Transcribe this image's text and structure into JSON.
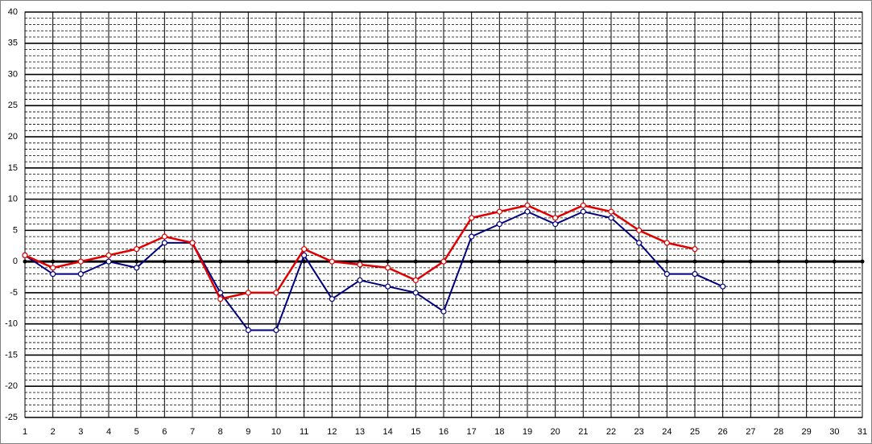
{
  "chart_data": {
    "type": "line",
    "x": [
      1,
      2,
      3,
      4,
      5,
      6,
      7,
      8,
      9,
      10,
      11,
      12,
      13,
      14,
      15,
      16,
      17,
      18,
      19,
      20,
      21,
      22,
      23,
      24,
      25,
      26,
      27,
      28,
      29,
      30,
      31
    ],
    "series": [
      {
        "color": "#000080",
        "values": [
          1,
          -2,
          -2,
          0,
          -1,
          3,
          3,
          -5,
          -11,
          -11,
          1,
          -6,
          -3,
          -4,
          -5,
          -8,
          4,
          6,
          8,
          6,
          8,
          7,
          3,
          -2,
          -2,
          -4,
          null,
          null,
          null,
          null,
          null
        ]
      },
      {
        "color": "#e00000",
        "values": [
          1,
          -1,
          0,
          1,
          2,
          4,
          3,
          -6,
          -5,
          -5,
          2,
          0,
          -0.5,
          -1,
          -3,
          0,
          7,
          8,
          9,
          7,
          9,
          8,
          5,
          3,
          2,
          null,
          null,
          null,
          null,
          null,
          null
        ]
      }
    ],
    "xlim": [
      1,
      31
    ],
    "xticks": [
      1,
      2,
      3,
      4,
      5,
      6,
      7,
      8,
      9,
      10,
      11,
      12,
      13,
      14,
      15,
      16,
      17,
      18,
      19,
      20,
      21,
      22,
      23,
      24,
      25,
      26,
      27,
      28,
      29,
      30,
      31
    ],
    "ylim": [
      -25,
      40
    ],
    "yticks": [
      -25,
      -20,
      -15,
      -10,
      -5,
      0,
      5,
      10,
      15,
      20,
      25,
      30,
      35,
      40
    ],
    "y_minor_ticks": [
      -24,
      -23,
      -22,
      -21,
      -19,
      -18,
      -17,
      -16,
      -14,
      -13,
      -12,
      -11,
      -9,
      -8,
      -7,
      -6,
      -4,
      -3,
      -2,
      -1,
      1,
      2,
      3,
      4,
      6,
      7,
      8,
      9,
      11,
      12,
      13,
      14,
      16,
      17,
      18,
      19,
      21,
      22,
      23,
      24,
      26,
      27,
      28,
      29,
      31,
      32,
      33,
      34,
      36,
      37,
      38,
      39
    ],
    "grid": true
  }
}
